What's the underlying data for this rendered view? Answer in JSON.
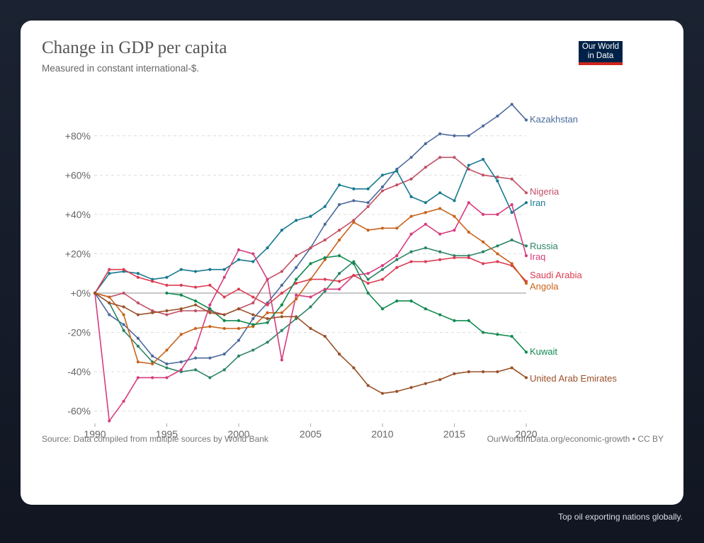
{
  "header": {
    "title": "Change in GDP per capita",
    "subtitle": "Measured in constant international-$.",
    "logo_line1": "Our World",
    "logo_line2": "in Data"
  },
  "footer": {
    "source": "Source: Data compiled from multiple sources by World Bank",
    "license": "OurWorldInData.org/economic-growth • CC BY"
  },
  "caption": "Top oil exporting nations globally.",
  "chart_data": {
    "type": "line",
    "title": "Change in GDP per capita",
    "subtitle": "Measured in constant international-$.",
    "xlabel": "",
    "ylabel": "",
    "xlim": [
      1990,
      2020
    ],
    "ylim": [
      -65,
      97
    ],
    "x_ticks": [
      1990,
      1995,
      2000,
      2005,
      2010,
      2015,
      2020
    ],
    "x_tick_labels": [
      "1990",
      "1995",
      "2000",
      "2005",
      "2010",
      "2015",
      "2020"
    ],
    "y_ticks": [
      -60,
      -40,
      -20,
      0,
      20,
      40,
      60,
      80
    ],
    "y_tick_labels": [
      "-60%",
      "-40%",
      "-20%",
      "+0%",
      "+20%",
      "+40%",
      "+60%",
      "+80%"
    ],
    "grid": "horizontal-dashed",
    "legend": "inline-right",
    "series": [
      {
        "name": "Kazakhstan",
        "color": "#4c6a9c",
        "start": 1990,
        "values": [
          0,
          -11,
          -16,
          -23,
          -32,
          -36,
          -35,
          -33,
          -33,
          -31,
          -24,
          -13,
          -5,
          4,
          13,
          23,
          35,
          45,
          47,
          46,
          54,
          63,
          69,
          76,
          81,
          80,
          80,
          85,
          90,
          96,
          88
        ]
      },
      {
        "name": "Nigeria",
        "color": "#c15065",
        "start": 1990,
        "values": [
          0,
          -2,
          0,
          -5,
          -9,
          -11,
          -9,
          -9,
          -9,
          -11,
          -8,
          -5,
          7,
          11,
          19,
          23,
          27,
          32,
          37,
          44,
          52,
          55,
          58,
          64,
          69,
          69,
          63,
          60,
          59,
          58,
          51
        ]
      },
      {
        "name": "Iran",
        "color": "#18798f",
        "start": 1990,
        "values": [
          0,
          10,
          11,
          10,
          7,
          8,
          12,
          11,
          12,
          12,
          17,
          16,
          23,
          32,
          37,
          39,
          44,
          55,
          53,
          53,
          60,
          62,
          49,
          46,
          51,
          47,
          65,
          68,
          57,
          41,
          46
        ]
      },
      {
        "name": "Russia",
        "color": "#2c8465",
        "start": 1990,
        "values": [
          0,
          -5,
          -19,
          -27,
          -35,
          -38,
          -40,
          -39,
          -43,
          -39,
          -32,
          -29,
          -25,
          -19,
          -13,
          -7,
          1,
          10,
          16,
          7,
          12,
          17,
          21,
          23,
          21,
          19,
          19,
          21,
          24,
          27,
          24
        ]
      },
      {
        "name": "Iraq",
        "color": "#d73c7e",
        "start": 1990,
        "values": [
          0,
          -65,
          -55,
          -43,
          -43,
          -43,
          -39,
          -28,
          -6,
          8,
          22,
          20,
          7,
          -34,
          -1,
          -2,
          2,
          2,
          9,
          10,
          14,
          19,
          30,
          35,
          30,
          32,
          46,
          40,
          40,
          45,
          19
        ]
      },
      {
        "name": "Saudi Arabia",
        "color": "#dc3c52",
        "start": 1990,
        "values": [
          0,
          12,
          12,
          8,
          6,
          4,
          4,
          3,
          4,
          -2,
          2,
          -2,
          -6,
          0,
          5,
          7,
          7,
          6,
          9,
          5,
          7,
          13,
          16,
          16,
          17,
          18,
          18,
          15,
          16,
          14,
          6
        ]
      },
      {
        "name": "Angola",
        "color": "#c9631b",
        "start": 1990,
        "values": [
          0,
          -2,
          -11,
          -35,
          -36,
          -29,
          -21,
          -18,
          -17,
          -18,
          -18,
          -17,
          -10,
          -10,
          -3,
          7,
          17,
          27,
          36,
          32,
          33,
          33,
          39,
          41,
          43,
          39,
          31,
          26,
          20,
          15,
          5
        ]
      },
      {
        "name": "Kuwait",
        "color": "#108a4f",
        "start": 1995,
        "values": [
          0,
          -1,
          -4,
          -8,
          -14,
          -14,
          -16,
          -15,
          -6,
          7,
          15,
          18,
          19,
          15,
          0,
          -8,
          -4,
          -4,
          -8,
          -11,
          -14,
          -14,
          -20,
          -21,
          -22,
          -30
        ]
      },
      {
        "name": "United Arab Emirates",
        "color": "#9a5129",
        "start": 1990,
        "values": [
          0,
          -5,
          -7,
          -11,
          -10,
          -9,
          -8,
          -6,
          -10,
          -11,
          -8,
          -11,
          -13,
          -12,
          -12,
          -18,
          -22,
          -31,
          -38,
          -47,
          -51,
          -50,
          -48,
          -46,
          -44,
          -41,
          -40,
          -40,
          -40,
          -38,
          -43
        ]
      }
    ]
  }
}
